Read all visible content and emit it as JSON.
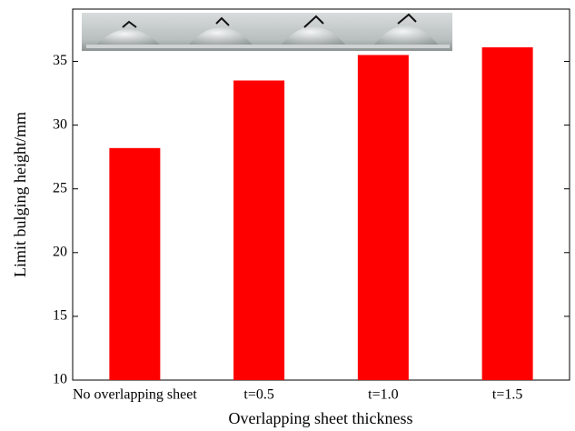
{
  "chart_data": {
    "type": "bar",
    "x_label": "Overlapping sheet thickness",
    "y_label": "Limit bulging height/mm",
    "categories": [
      "No overlapping sheet",
      "t=0.5",
      "t=1.0",
      "t=1.5"
    ],
    "values": [
      28.2,
      33.5,
      35.5,
      36.1
    ],
    "color": "#ff0000",
    "ylim": [
      10,
      39.1
    ],
    "yticks": [
      10,
      15,
      20,
      25,
      30,
      35
    ],
    "grid": false
  }
}
